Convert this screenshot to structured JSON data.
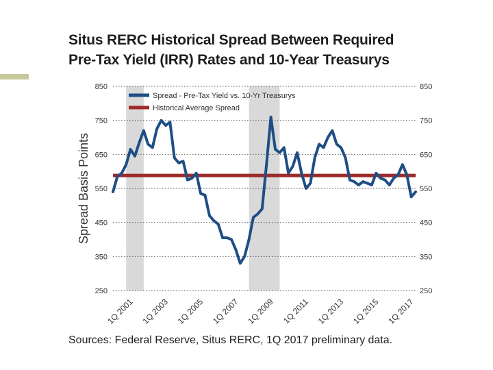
{
  "title_lines": [
    "Situs RERC Historical Spread Between Required",
    "Pre-Tax Yield (IRR) Rates and 10-Year Treasurys"
  ],
  "source": "Sources: Federal Reserve, Situs RERC, 1Q 2017 preliminary data.",
  "colors": {
    "series": "#1f4e85",
    "average": "#9e2a2b",
    "recession": "#d9d9d9",
    "accent": "#c8c99a"
  },
  "chart_data": {
    "type": "line",
    "title": "Situs RERC Historical Spread Between Required Pre-Tax Yield (IRR) Rates and 10-Year Treasurys",
    "ylabel": "Spread Basis Points",
    "xlabel": "",
    "ylim": [
      250,
      850
    ],
    "yticks": [
      250,
      350,
      450,
      550,
      650,
      750,
      850
    ],
    "ytick_labels": [
      "250",
      "350",
      "450",
      "550",
      "650",
      "750",
      "850"
    ],
    "xlim": [
      2000.0,
      2017.25
    ],
    "xticks": [
      2001,
      2003,
      2005,
      2007,
      2009,
      2011,
      2013,
      2015,
      2017
    ],
    "xtick_labels": [
      "1Q 2001",
      "1Q 2003",
      "1Q 2005",
      "1Q 2007",
      "1Q 2009",
      "1Q 2011",
      "1Q 2013",
      "1Q 2015",
      "1Q 2017"
    ],
    "grid": "horizontal dotted",
    "legend": "top-left",
    "shaded_periods": [
      [
        2000.75,
        2001.75
      ],
      [
        2007.75,
        2009.5
      ]
    ],
    "series": [
      {
        "name": "Spread - Pre-Tax Yield vs. 10-Yr Treasurys",
        "x": [
          2000.0,
          2000.25,
          2000.5,
          2000.75,
          2001.0,
          2001.25,
          2001.5,
          2001.75,
          2002.0,
          2002.25,
          2002.5,
          2002.75,
          2003.0,
          2003.25,
          2003.5,
          2003.75,
          2004.0,
          2004.25,
          2004.5,
          2004.75,
          2005.0,
          2005.25,
          2005.5,
          2005.75,
          2006.0,
          2006.25,
          2006.5,
          2006.75,
          2007.0,
          2007.25,
          2007.5,
          2007.75,
          2008.0,
          2008.25,
          2008.5,
          2008.75,
          2009.0,
          2009.25,
          2009.5,
          2009.75,
          2010.0,
          2010.25,
          2010.5,
          2010.75,
          2011.0,
          2011.25,
          2011.5,
          2011.75,
          2012.0,
          2012.25,
          2012.5,
          2012.75,
          2013.0,
          2013.25,
          2013.5,
          2013.75,
          2014.0,
          2014.25,
          2014.5,
          2014.75,
          2015.0,
          2015.25,
          2015.5,
          2015.75,
          2016.0,
          2016.25,
          2016.5,
          2016.75,
          2017.0,
          2017.25
        ],
        "values": [
          540,
          585,
          595,
          620,
          665,
          645,
          685,
          720,
          680,
          670,
          725,
          750,
          735,
          745,
          640,
          625,
          630,
          575,
          580,
          595,
          535,
          530,
          470,
          455,
          445,
          405,
          405,
          400,
          370,
          330,
          350,
          400,
          465,
          475,
          490,
          620,
          760,
          665,
          655,
          670,
          595,
          615,
          655,
          595,
          550,
          565,
          640,
          680,
          670,
          700,
          720,
          680,
          670,
          640,
          575,
          570,
          560,
          570,
          565,
          560,
          595,
          580,
          575,
          560,
          580,
          590,
          620,
          590,
          525,
          540
        ]
      },
      {
        "name": "Historical Average Spread",
        "x": [
          2000.0,
          2017.25
        ],
        "values": [
          588,
          588
        ]
      }
    ]
  }
}
